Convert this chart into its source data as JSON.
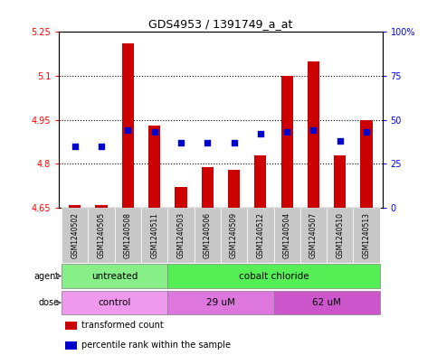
{
  "title": "GDS4953 / 1391749_a_at",
  "samples": [
    "GSM1240502",
    "GSM1240505",
    "GSM1240508",
    "GSM1240511",
    "GSM1240503",
    "GSM1240506",
    "GSM1240509",
    "GSM1240512",
    "GSM1240504",
    "GSM1240507",
    "GSM1240510",
    "GSM1240513"
  ],
  "bar_values": [
    4.66,
    4.66,
    5.21,
    4.93,
    4.72,
    4.79,
    4.78,
    4.83,
    5.1,
    5.15,
    4.83,
    4.95
  ],
  "bar_base": 4.65,
  "percentile_ranks": [
    35,
    35,
    44,
    43,
    37,
    37,
    37,
    42,
    43,
    44,
    38,
    43
  ],
  "ylim_left": [
    4.65,
    5.25
  ],
  "ylim_right": [
    0,
    100
  ],
  "yticks_left": [
    4.65,
    4.8,
    4.95,
    5.1,
    5.25
  ],
  "yticks_right": [
    0,
    25,
    50,
    75,
    100
  ],
  "ytick_labels_left": [
    "4.65",
    "4.8",
    "4.95",
    "5.1",
    "5.25"
  ],
  "ytick_labels_right": [
    "0",
    "25",
    "50",
    "75",
    "100%"
  ],
  "grid_lines": [
    4.8,
    4.95,
    5.1
  ],
  "bar_color": "#cc0000",
  "percentile_color": "#0000cc",
  "agent_groups": [
    {
      "label": "untreated",
      "start": 0,
      "end": 4,
      "color": "#88ee88"
    },
    {
      "label": "cobalt chloride",
      "start": 4,
      "end": 12,
      "color": "#55ee55"
    }
  ],
  "dose_groups": [
    {
      "label": "control",
      "start": 0,
      "end": 4,
      "color": "#ee99ee"
    },
    {
      "label": "29 uM",
      "start": 4,
      "end": 8,
      "color": "#dd77dd"
    },
    {
      "label": "62 uM",
      "start": 8,
      "end": 12,
      "color": "#cc55cc"
    }
  ],
  "legend_items": [
    {
      "label": "transformed count",
      "color": "#cc0000"
    },
    {
      "label": "percentile rank within the sample",
      "color": "#0000cc"
    }
  ],
  "bg_color": "#ffffff",
  "sample_bg_color": "#c8c8c8",
  "plot_border_color": "#000000",
  "bar_width": 0.45
}
